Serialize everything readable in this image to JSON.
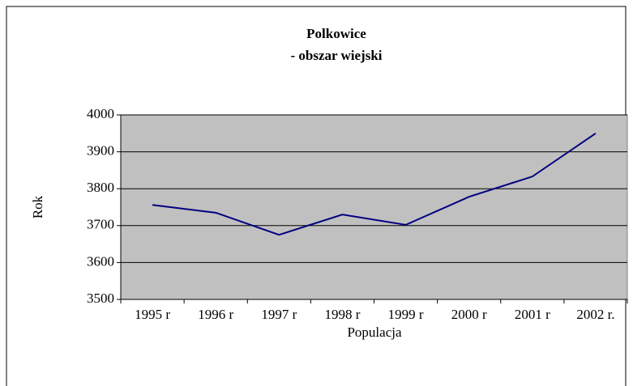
{
  "chart_data": {
    "type": "line",
    "title": "Polkowice",
    "subtitle": "- obszar wiejski",
    "x_label": "Populacja",
    "y_label": "Rok",
    "categories": [
      "1995 r",
      "1996 r",
      "1997 r",
      "1998 r",
      "1999 r",
      "2000 r",
      "2001 r",
      "2002 r."
    ],
    "series": [
      {
        "name": "Polkowice",
        "color": "#000080",
        "values": [
          3756,
          3735,
          3675,
          3730,
          3702,
          3778,
          3833,
          3950
        ]
      }
    ],
    "ylim": [
      3500,
      4000
    ],
    "yticks": [
      3500,
      3600,
      3700,
      3800,
      3900,
      4000
    ],
    "grid": true,
    "plot_background": "#c0c0c0"
  }
}
